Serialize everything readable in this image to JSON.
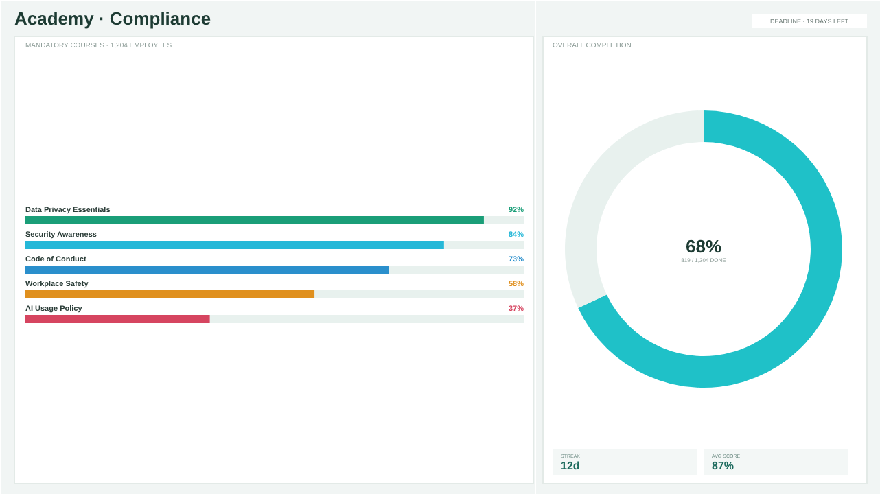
{
  "chart_data": [
    {
      "type": "bar",
      "orientation": "horizontal",
      "title": "Academy · Compliance",
      "subtitle": "MANDATORY COURSES · 1,204 EMPLOYEES",
      "annotations": [
        "DEADLINE · 19 DAYS LEFT"
      ],
      "categories": [
        "Data Privacy Essentials",
        "Security Awareness",
        "Code of Conduct",
        "Workplace Safety",
        "AI Usage Policy"
      ],
      "values": [
        92,
        84,
        73,
        58,
        37
      ],
      "colors": [
        "#1a9e78",
        "#26b8d8",
        "#2a8fcc",
        "#e0901e",
        "#d64560"
      ],
      "value_labels": [
        "92%",
        "84%",
        "73%",
        "58%",
        "37%"
      ]
    },
    {
      "type": "donut",
      "title": "OVERALL COMPLETION",
      "categories": [
        null,
        null
      ],
      "values": [
        68,
        32
      ],
      "colors": [
        "#1fc1c8",
        "#e8f1ee"
      ],
      "value_labels": [
        "68%",
        null
      ],
      "annotations": [
        "819 / 1,204 DONE"
      ]
    },
    {
      "type": "other",
      "annotations": [
        "STREAK",
        "12d",
        "AVG SCORE",
        "87%"
      ]
    }
  ]
}
